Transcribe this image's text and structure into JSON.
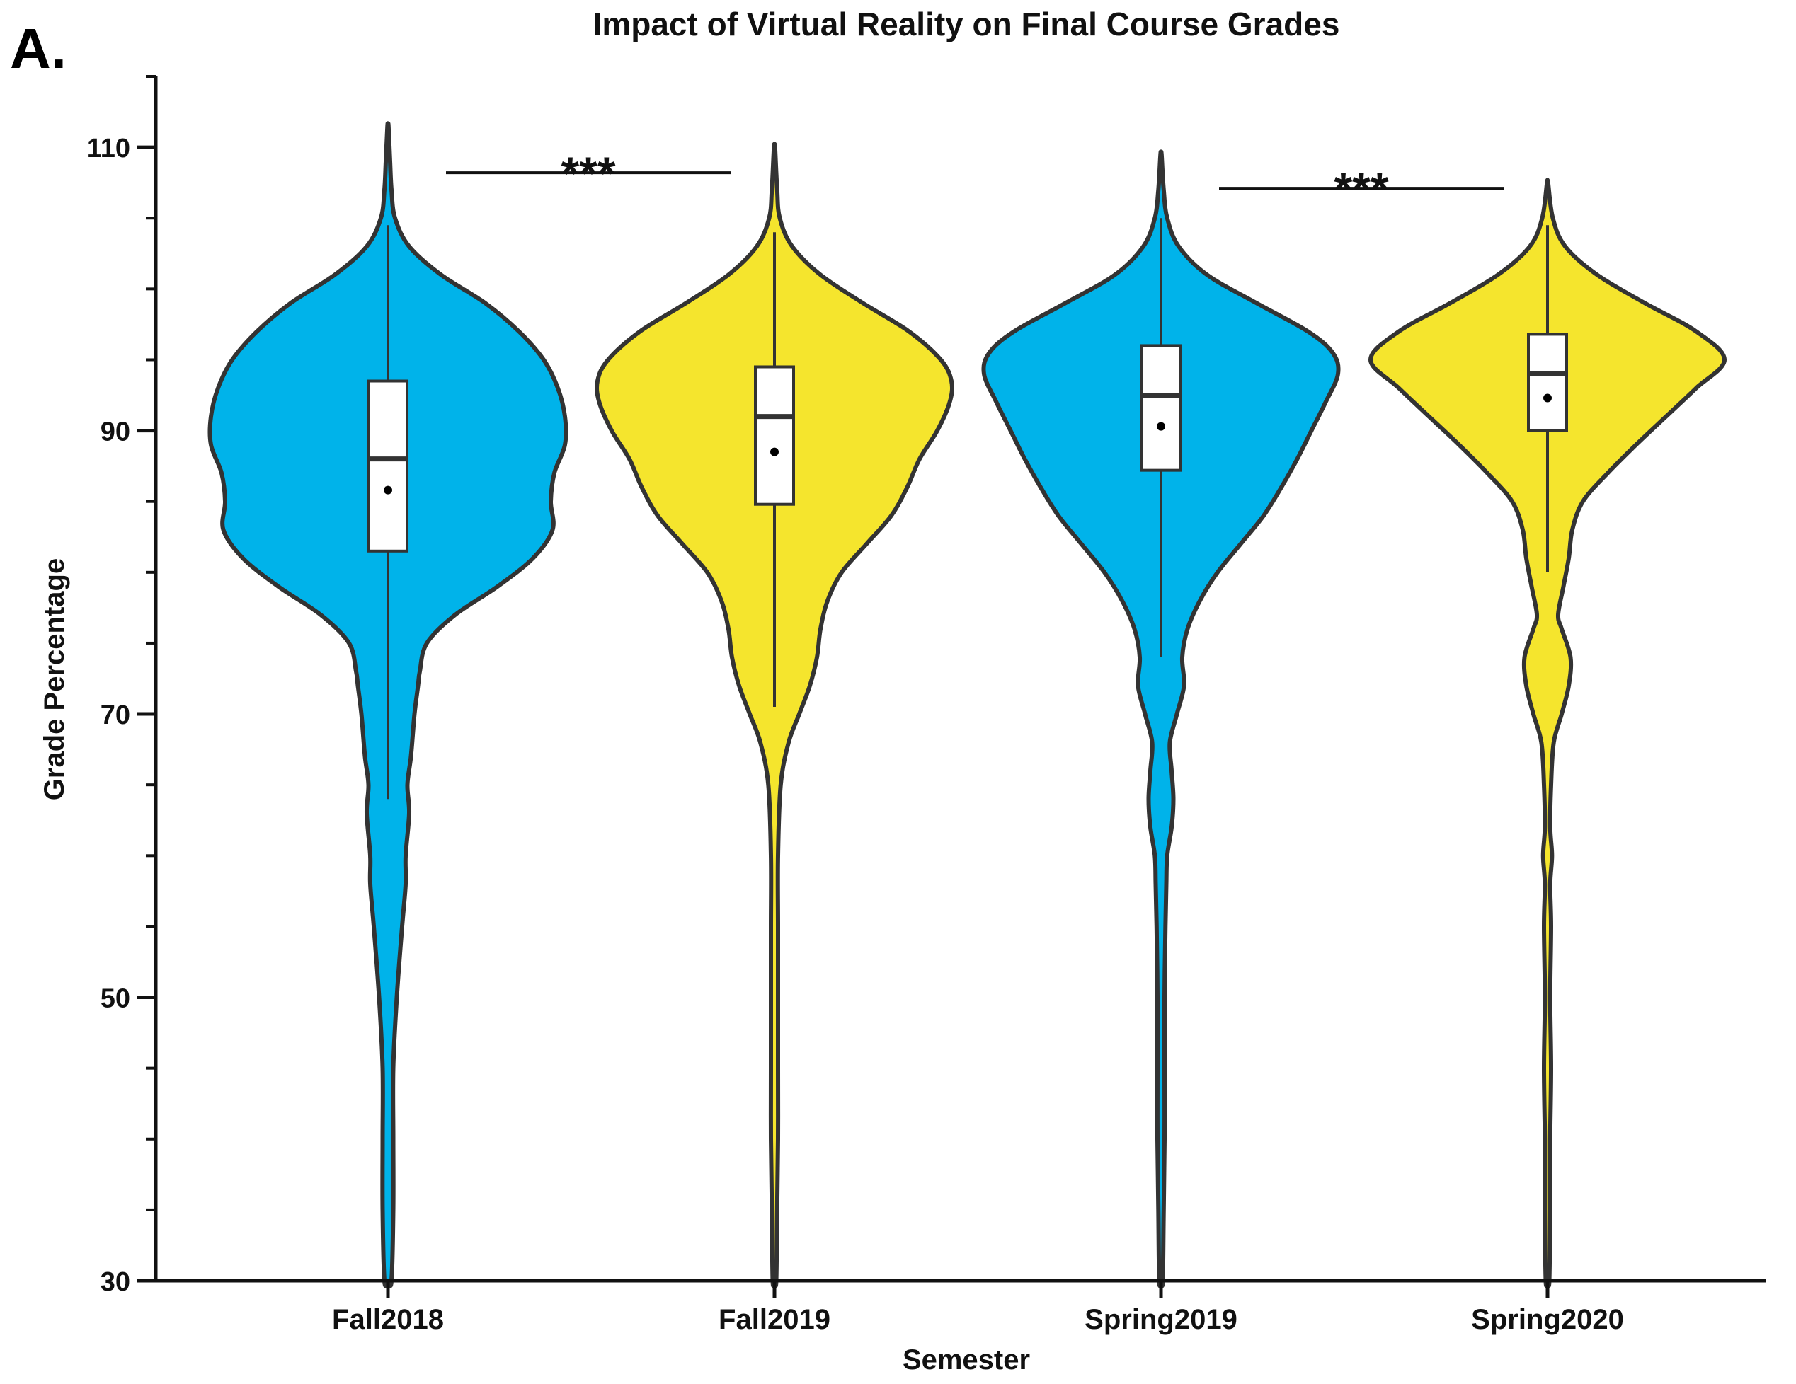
{
  "panel_label": "A.",
  "chart_data": {
    "type": "violin",
    "title": "Impact of Virtual Reality on Final Course Grades",
    "xlabel": "Semester",
    "ylabel": "Grade Percentage",
    "ylim": [
      30,
      115
    ],
    "yticks": [
      30,
      50,
      70,
      90,
      110
    ],
    "ytick_labels": [
      "30",
      "50",
      "70",
      "90",
      "110"
    ],
    "minor_ytick_step": 5,
    "grid": false,
    "legend": "none",
    "categories": [
      "Fall2018",
      "Fall2019",
      "Spring2019",
      "Spring2020"
    ],
    "colors": [
      "#00b3ea",
      "#f5e52d",
      "#00b3ea",
      "#f5e52d"
    ],
    "outline_color": "#333333",
    "groups": [
      {
        "name": "Fall2018",
        "min": 30,
        "max": 111.5,
        "q1": 81.5,
        "median": 88,
        "q3": 93.5,
        "mean": 85.8,
        "whisker_low": 64,
        "whisker_high": 104.5,
        "density": [
          [
            30,
            0.02
          ],
          [
            35,
            0.03
          ],
          [
            40,
            0.03
          ],
          [
            45,
            0.03
          ],
          [
            50,
            0.05
          ],
          [
            55,
            0.08
          ],
          [
            58,
            0.1
          ],
          [
            60,
            0.1
          ],
          [
            63,
            0.12
          ],
          [
            65,
            0.11
          ],
          [
            67,
            0.13
          ],
          [
            70,
            0.15
          ],
          [
            72,
            0.17
          ],
          [
            73,
            0.18
          ],
          [
            75,
            0.22
          ],
          [
            77,
            0.38
          ],
          [
            79,
            0.62
          ],
          [
            81,
            0.82
          ],
          [
            83,
            0.93
          ],
          [
            85,
            0.92
          ],
          [
            87,
            0.94
          ],
          [
            89,
            1.0
          ],
          [
            91,
            1.0
          ],
          [
            93,
            0.96
          ],
          [
            95,
            0.88
          ],
          [
            97,
            0.74
          ],
          [
            99,
            0.55
          ],
          [
            101,
            0.3
          ],
          [
            103,
            0.12
          ],
          [
            105,
            0.04
          ],
          [
            107,
            0.02
          ],
          [
            109,
            0.012
          ],
          [
            111.5,
            0.003
          ]
        ]
      },
      {
        "name": "Fall2019",
        "min": 30,
        "max": 110,
        "q1": 84.8,
        "median": 91,
        "q3": 94.5,
        "mean": 88.5,
        "whisker_low": 70.5,
        "whisker_high": 104,
        "density": [
          [
            30,
            0.01
          ],
          [
            35,
            0.015
          ],
          [
            40,
            0.02
          ],
          [
            45,
            0.02
          ],
          [
            50,
            0.02
          ],
          [
            55,
            0.02
          ],
          [
            60,
            0.02
          ],
          [
            65,
            0.035
          ],
          [
            68,
            0.08
          ],
          [
            70,
            0.14
          ],
          [
            72,
            0.2
          ],
          [
            74,
            0.24
          ],
          [
            76,
            0.26
          ],
          [
            78,
            0.3
          ],
          [
            80,
            0.38
          ],
          [
            82,
            0.52
          ],
          [
            84,
            0.66
          ],
          [
            86,
            0.75
          ],
          [
            88,
            0.82
          ],
          [
            90,
            0.92
          ],
          [
            92,
            0.99
          ],
          [
            93.5,
            1.0
          ],
          [
            95,
            0.94
          ],
          [
            97,
            0.76
          ],
          [
            99,
            0.5
          ],
          [
            101,
            0.26
          ],
          [
            103,
            0.1
          ],
          [
            105,
            0.03
          ],
          [
            107,
            0.015
          ],
          [
            110,
            0.003
          ]
        ]
      },
      {
        "name": "Spring2019",
        "min": 30,
        "max": 109.5,
        "q1": 87.2,
        "median": 92.5,
        "q3": 96,
        "mean": 90.3,
        "whisker_low": 74,
        "whisker_high": 105,
        "density": [
          [
            30,
            0.01
          ],
          [
            35,
            0.015
          ],
          [
            40,
            0.02
          ],
          [
            45,
            0.02
          ],
          [
            50,
            0.02
          ],
          [
            55,
            0.025
          ],
          [
            58,
            0.03
          ],
          [
            60,
            0.035
          ],
          [
            62,
            0.06
          ],
          [
            64,
            0.07
          ],
          [
            66,
            0.06
          ],
          [
            68,
            0.05
          ],
          [
            70,
            0.09
          ],
          [
            72,
            0.13
          ],
          [
            74,
            0.12
          ],
          [
            76,
            0.15
          ],
          [
            78,
            0.22
          ],
          [
            80,
            0.32
          ],
          [
            82,
            0.45
          ],
          [
            84,
            0.58
          ],
          [
            86,
            0.68
          ],
          [
            88,
            0.77
          ],
          [
            90,
            0.85
          ],
          [
            92,
            0.93
          ],
          [
            94,
            1.0
          ],
          [
            95.5,
            0.97
          ],
          [
            97,
            0.83
          ],
          [
            99,
            0.54
          ],
          [
            101,
            0.26
          ],
          [
            103,
            0.1
          ],
          [
            105,
            0.035
          ],
          [
            107,
            0.015
          ],
          [
            109.5,
            0.003
          ]
        ]
      },
      {
        "name": "Spring2020",
        "min": 30,
        "max": 107.5,
        "q1": 90,
        "median": 94,
        "q3": 96.8,
        "mean": 92.3,
        "whisker_low": 80,
        "whisker_high": 104.5,
        "density": [
          [
            30,
            0.01
          ],
          [
            35,
            0.015
          ],
          [
            40,
            0.015
          ],
          [
            45,
            0.02
          ],
          [
            50,
            0.015
          ],
          [
            55,
            0.02
          ],
          [
            58,
            0.015
          ],
          [
            60,
            0.025
          ],
          [
            62,
            0.015
          ],
          [
            65,
            0.02
          ],
          [
            68,
            0.035
          ],
          [
            70,
            0.08
          ],
          [
            72,
            0.12
          ],
          [
            74,
            0.13
          ],
          [
            76,
            0.08
          ],
          [
            77,
            0.06
          ],
          [
            79,
            0.09
          ],
          [
            81,
            0.12
          ],
          [
            83,
            0.14
          ],
          [
            85,
            0.2
          ],
          [
            87,
            0.34
          ],
          [
            89,
            0.5
          ],
          [
            91,
            0.67
          ],
          [
            93,
            0.84
          ],
          [
            95,
            1.0
          ],
          [
            97,
            0.84
          ],
          [
            99,
            0.55
          ],
          [
            101,
            0.28
          ],
          [
            103,
            0.1
          ],
          [
            105,
            0.03
          ],
          [
            107.5,
            0.003
          ]
        ]
      }
    ],
    "annotations": [
      {
        "text": "***",
        "from": "Fall2018",
        "to": "Fall2019",
        "y": 108.2
      },
      {
        "text": "***",
        "from": "Spring2019",
        "to": "Spring2020",
        "y": 107.1
      }
    ]
  }
}
